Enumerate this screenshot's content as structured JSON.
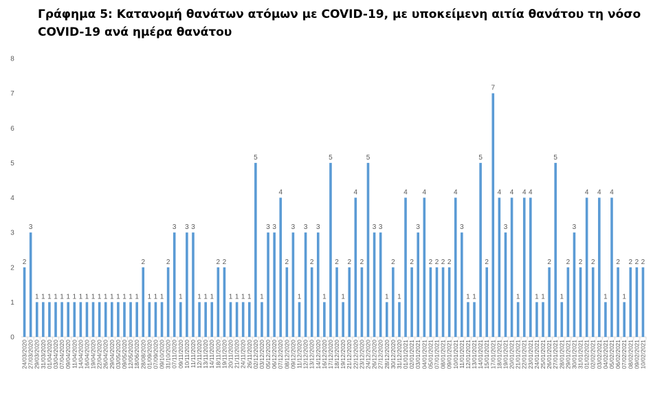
{
  "chart_data": {
    "type": "bar",
    "title": "Γράφημα 5: Κατανομή θανάτων ατόμων με COVID-19, με υποκείμενη αιτία θανάτου τη νόσο COVID-19 ανά ημέρα θανάτου",
    "categories": [
      "24/03/2020",
      "27/03/2020",
      "29/03/2020",
      "31/03/2020",
      "01/04/2020",
      "03/04/2020",
      "07/04/2020",
      "09/04/2020",
      "11/04/2020",
      "14/04/2020",
      "16/04/2020",
      "19/04/2020",
      "22/04/2020",
      "26/04/2020",
      "29/04/2020",
      "03/05/2020",
      "09/05/2020",
      "12/05/2020",
      "18/06/2020",
      "28/08/2020",
      "01/09/2020",
      "07/09/2020",
      "09/10/2020",
      "31/10/2020",
      "07/11/2020",
      "09/11/2020",
      "10/11/2020",
      "11/11/2020",
      "12/11/2020",
      "13/11/2020",
      "14/11/2020",
      "18/11/2020",
      "19/11/2020",
      "20/11/2020",
      "21/11/2020",
      "24/11/2020",
      "26/11/2020",
      "02/12/2020",
      "03/12/2020",
      "05/12/2020",
      "06/12/2020",
      "07/12/2020",
      "08/12/2020",
      "09/12/2020",
      "11/12/2020",
      "12/12/2020",
      "13/12/2020",
      "14/12/2020",
      "16/12/2020",
      "17/12/2020",
      "18/12/2020",
      "19/12/2020",
      "21/12/2020",
      "22/12/2020",
      "23/12/2020",
      "24/12/2020",
      "26/12/2020",
      "27/12/2020",
      "28/12/2020",
      "30/12/2020",
      "31/12/2020",
      "01/01/2021",
      "02/01/2021",
      "03/01/2021",
      "04/01/2021",
      "05/01/2021",
      "07/01/2021",
      "08/01/2021",
      "09/01/2021",
      "10/01/2021",
      "11/01/2021",
      "12/01/2021",
      "13/01/2021",
      "14/01/2021",
      "15/01/2021",
      "17/01/2021",
      "18/01/2021",
      "19/01/2021",
      "20/01/2021",
      "21/01/2021",
      "22/01/2021",
      "23/01/2021",
      "24/01/2021",
      "25/01/2021",
      "26/01/2021",
      "27/01/2021",
      "28/01/2021",
      "29/01/2021",
      "30/01/2021",
      "31/01/2021",
      "01/02/2021",
      "02/02/2021",
      "03/02/2021",
      "04/02/2021",
      "05/02/2021",
      "06/02/2021",
      "07/02/2021",
      "08/02/2021",
      "09/02/2021",
      "10/02/2021"
    ],
    "values": [
      2,
      3,
      1,
      1,
      1,
      1,
      1,
      1,
      1,
      1,
      1,
      1,
      1,
      1,
      1,
      1,
      1,
      1,
      1,
      2,
      1,
      1,
      1,
      2,
      3,
      1,
      3,
      3,
      1,
      1,
      1,
      2,
      2,
      1,
      1,
      1,
      1,
      5,
      1,
      3,
      3,
      4,
      2,
      3,
      1,
      3,
      2,
      3,
      1,
      5,
      2,
      1,
      2,
      4,
      2,
      5,
      3,
      3,
      1,
      2,
      1,
      4,
      2,
      3,
      4,
      2,
      2,
      2,
      2,
      4,
      3,
      1,
      1,
      5,
      2,
      7,
      4,
      3,
      4,
      1,
      4,
      4,
      1,
      1,
      2,
      5,
      1,
      2,
      3,
      2,
      4,
      2,
      4,
      1,
      4,
      2,
      1,
      2,
      2,
      2
    ],
    "color": "#5b9bd5",
    "ylim": [
      0,
      8
    ],
    "yticks": [
      0,
      1,
      2,
      3,
      4,
      5,
      6,
      7,
      8
    ],
    "grid": false
  }
}
